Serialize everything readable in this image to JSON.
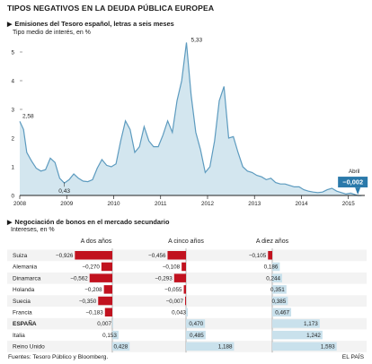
{
  "main_title": "TIPOS NEGATIVOS EN LA DEUDA PÚBLICA EUROPEA",
  "footer": {
    "sources": "Fuentes: Tesoro Público y Bloomberg.",
    "brand": "EL PAÍS"
  },
  "colors": {
    "area_fill": "#d3e6ef",
    "area_line": "#5d9bbf",
    "negative_bar": "#c1121f",
    "positive_bar": "#c9e1ec",
    "callout": "#2a79aa"
  },
  "chart_data": [
    {
      "type": "area",
      "title": "Emisiones del Tesoro español, letras a seis meses",
      "ylabel": "Tipo medio de interés, en %",
      "x_tick_labels": [
        "2008",
        "2009",
        "2010",
        "2011",
        "2012",
        "2013",
        "2014",
        "2015"
      ],
      "y_tick_labels": [
        "0",
        "1",
        "2",
        "3",
        "4",
        "5"
      ],
      "ylim": [
        0,
        5.5
      ],
      "xlim": [
        2008.0,
        2015.35
      ],
      "grid": false,
      "x": [
        2008.0,
        2008.08,
        2008.15,
        2008.25,
        2008.35,
        2008.45,
        2008.55,
        2008.65,
        2008.75,
        2008.85,
        2008.95,
        2009.05,
        2009.15,
        2009.25,
        2009.35,
        2009.45,
        2009.55,
        2009.65,
        2009.75,
        2009.85,
        2009.95,
        2010.05,
        2010.15,
        2010.25,
        2010.35,
        2010.45,
        2010.55,
        2010.65,
        2010.75,
        2010.85,
        2010.95,
        2011.05,
        2011.15,
        2011.25,
        2011.35,
        2011.45,
        2011.55,
        2011.65,
        2011.75,
        2011.85,
        2011.95,
        2012.05,
        2012.15,
        2012.25,
        2012.35,
        2012.45,
        2012.55,
        2012.65,
        2012.75,
        2012.85,
        2012.95,
        2013.05,
        2013.15,
        2013.25,
        2013.35,
        2013.45,
        2013.55,
        2013.65,
        2013.75,
        2013.85,
        2013.95,
        2014.05,
        2014.15,
        2014.25,
        2014.35,
        2014.45,
        2014.55,
        2014.65,
        2014.75,
        2014.85,
        2014.95,
        2015.05,
        2015.2,
        2015.28
      ],
      "values": [
        2.58,
        2.3,
        1.5,
        1.2,
        0.95,
        0.85,
        0.9,
        1.3,
        1.15,
        0.6,
        0.43,
        0.55,
        0.75,
        0.6,
        0.5,
        0.48,
        0.55,
        0.95,
        1.25,
        1.05,
        1.0,
        1.1,
        1.9,
        2.6,
        2.3,
        1.5,
        1.7,
        2.4,
        1.9,
        1.7,
        1.7,
        2.1,
        2.6,
        2.2,
        3.3,
        4.0,
        5.33,
        3.5,
        2.2,
        1.6,
        0.8,
        1.0,
        1.9,
        3.3,
        3.8,
        2.0,
        2.05,
        1.5,
        1.0,
        0.85,
        0.8,
        0.7,
        0.65,
        0.55,
        0.6,
        0.45,
        0.4,
        0.4,
        0.35,
        0.3,
        0.3,
        0.2,
        0.15,
        0.12,
        0.1,
        0.12,
        0.2,
        0.25,
        0.15,
        0.1,
        0.05,
        0.08,
        -0.002,
        -0.002
      ],
      "annotations": [
        {
          "label": "2,58",
          "x": 2008.0,
          "y": 2.58
        },
        {
          "label": "0,43",
          "x": 2008.95,
          "y": 0.43
        },
        {
          "label": "5,33",
          "x": 2011.55,
          "y": 5.33
        },
        {
          "label": "Abril",
          "x": 2015.2,
          "y": -0.002
        },
        {
          "label": "−0,002",
          "x": 2015.2,
          "y": -0.002
        }
      ]
    },
    {
      "type": "bar",
      "title": "Negociación de bonos en el mercado secundario",
      "ylabel": "Intereses, en %",
      "categories": [
        "Suiza",
        "Alemania",
        "Dinamarca",
        "Holanda",
        "Suecia",
        "Francia",
        "ESPAÑA",
        "Italia",
        "Reino Unido"
      ],
      "series": [
        {
          "name": "A dos años",
          "values": [
            -0.926,
            -0.27,
            -0.562,
            -0.208,
            -0.35,
            -0.183,
            0.007,
            0.153,
            0.428
          ],
          "labels": [
            "−0,926",
            "−0,270",
            "−0,562",
            "−0,208",
            "−0,350",
            "−0,183",
            "0,007",
            "0,153",
            "0,428"
          ]
        },
        {
          "name": "A cinco años",
          "values": [
            -0.456,
            -0.108,
            -0.293,
            -0.055,
            -0.007,
            0.043,
            0.47,
            0.485,
            1.188
          ],
          "labels": [
            "−0,456",
            "−0,108",
            "−0,293",
            "−0,055",
            "−0,007",
            "0,043",
            "0,470",
            "0,485",
            "1,188"
          ]
        },
        {
          "name": "A diez años",
          "values": [
            -0.105,
            0.186,
            0.244,
            0.351,
            0.385,
            0.467,
            1.173,
            1.242,
            1.593
          ],
          "labels": [
            "−0,105",
            "0,186",
            "0,244",
            "0,351",
            "0,385",
            "0,467",
            "1,173",
            "1,242",
            "1,593"
          ]
        }
      ]
    }
  ]
}
